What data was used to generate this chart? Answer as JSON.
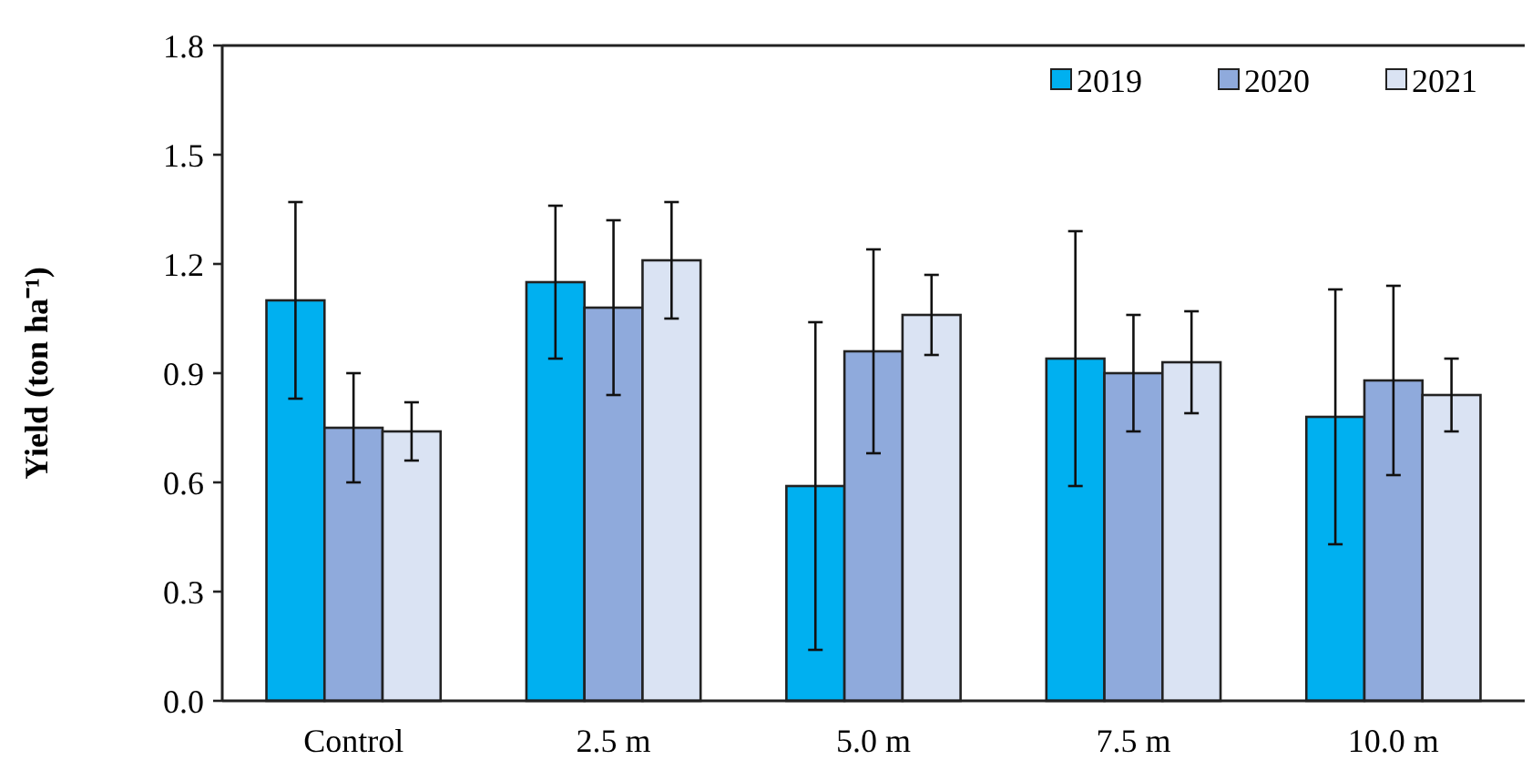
{
  "chart_data": {
    "type": "bar",
    "ylabel": "Yield (ton ha⁻¹)",
    "categories": [
      "Control",
      "2.5 m",
      "5.0 m",
      "7.5 m",
      "10.0 m"
    ],
    "series": [
      {
        "name": "2019",
        "color": "#00b0f0",
        "values": [
          1.1,
          1.15,
          0.59,
          0.94,
          0.78
        ],
        "errors": [
          0.27,
          0.21,
          0.45,
          0.35,
          0.35
        ]
      },
      {
        "name": "2020",
        "color": "#8faadc",
        "values": [
          0.75,
          1.08,
          0.96,
          0.9,
          0.88
        ],
        "errors": [
          0.15,
          0.24,
          0.28,
          0.16,
          0.26
        ]
      },
      {
        "name": "2021",
        "color": "#dae3f3",
        "values": [
          0.74,
          1.21,
          1.06,
          0.93,
          0.84
        ],
        "errors": [
          0.08,
          0.16,
          0.11,
          0.14,
          0.1
        ]
      }
    ],
    "ylim": [
      0,
      1.8
    ],
    "yticks": [
      {
        "value": 0,
        "label": "0.0"
      },
      {
        "value": 0.3,
        "label": "0.3"
      },
      {
        "value": 0.6,
        "label": "0.6"
      },
      {
        "value": 0.9,
        "label": "0.9"
      },
      {
        "value": 1.2,
        "label": "1.2"
      },
      {
        "value": 1.5,
        "label": "1.5"
      },
      {
        "value": 1.8,
        "label": "1.8"
      }
    ],
    "grid": false,
    "legend": "top right"
  }
}
